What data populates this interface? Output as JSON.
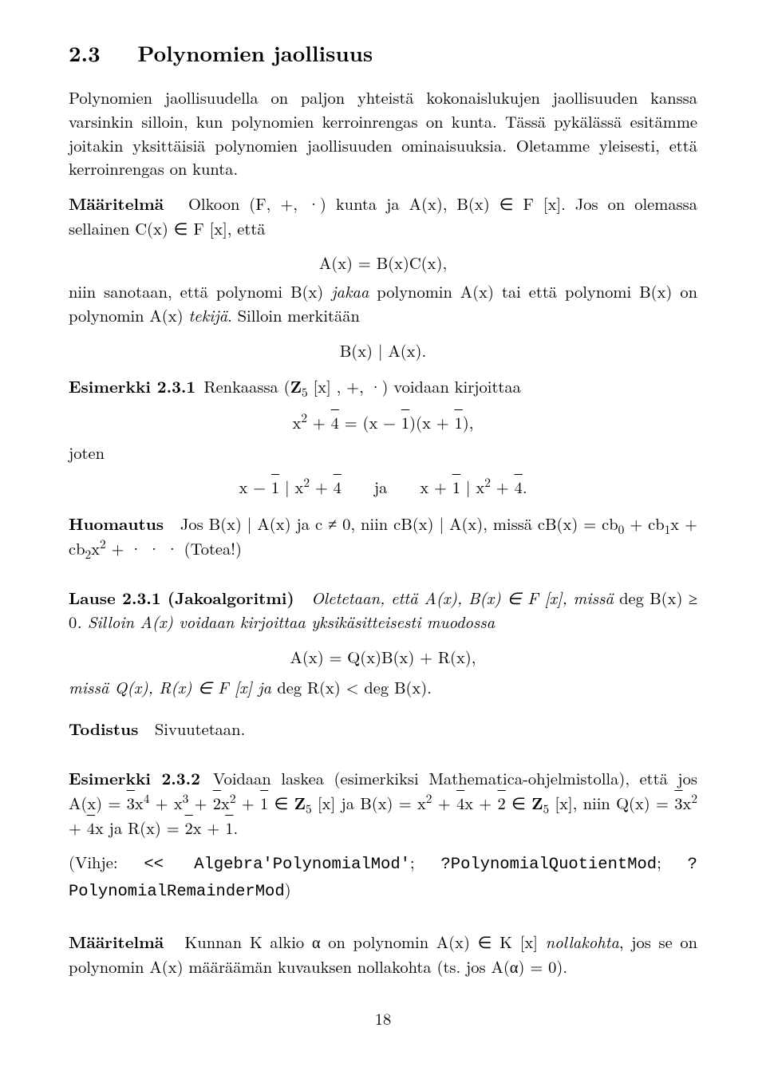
{
  "section": {
    "number": "2.3",
    "title": "Polynomien jaollisuus"
  },
  "intro_para": "Polynomien jaollisuudella on paljon yhteistä kokonaislukujen jaollisuuden kanssa varsinkin silloin, kun polynomien kerroinrengas on kunta. Tässä pykälässä esitämme joitakin yksittäisiä polynomien jaollisuuden ominaisuuksia. Oletamme yleisesti, että kerroinrengas on kunta.",
  "def1": {
    "label": "Määritelmä",
    "body_pre": "Olkoon (F, +, ·) kunta ja A(x), B(x) ∈ F [x]. Jos on olemassa sellainen C(x) ∈ F [x], että",
    "eq1": "A(x) = B(x)C(x),",
    "body_post_pre": "niin sanotaan, että polynomi B(x) ",
    "body_post_it1": "jakaa",
    "body_post_mid": " polynomin A(x) tai että polynomi B(x) on polynomin A(x) ",
    "body_post_it2": "tekijä",
    "body_post_end": ". Silloin merkitään",
    "eq2": "B(x) | A(x)."
  },
  "ex231": {
    "label": "Esimerkki 2.3.1",
    "body": "Renkaassa (",
    "ring": "Z",
    "ring_sub": "5",
    "body2": " [x] , +, ·) voidaan kirjoittaa",
    "eq": "x",
    "joten": "joten",
    "divides_ja": "ja"
  },
  "huom": {
    "label": "Huomautus",
    "body_a": "Jos B(x) | A(x) ja c ≠ 0, niin cB(x) | A(x), missä cB(x) = cb",
    "body_b": " + cb",
    "body_c": "x + cb",
    "body_d": "x",
    "body_e": " + · · · (Totea!)"
  },
  "lause231": {
    "label": "Lause 2.3.1 (Jakoalgoritmi)",
    "body_a": "Oletetaan, että A(x), B(x) ∈ F [x], missä",
    "body_deg": " deg B(x) ≥ 0",
    "body_b": ". Silloin A(x) voidaan kirjoittaa yksikäsitteisesti muodossa",
    "eq": "A(x) = Q(x)B(x) + R(x),",
    "body_c": "missä Q(x), R(x) ∈ F [x] ja ",
    "body_d": "deg R(x) < deg B(x)."
  },
  "tod": {
    "label": "Todistus",
    "body": "Sivuutetaan."
  },
  "ex232": {
    "label": "Esimerkki 2.3.2",
    "body_a": "Voidaan laskea (esimerkiksi Mathematica-ohjelmistolla), että jos A(x) = ",
    "ring": "Z",
    "ring_sub": "5",
    "body_mid1": " [x] ja B(x) = x",
    "body_niin": ", niin Q(x) = ",
    "body_jaR": " ja R(x) = ",
    "hint_pre": "(Vihje: ",
    "hint_code1": "<< Algebra'PolynomialMod'",
    "hint_sep1": "; ",
    "hint_code2": "?PolynomialQuotientMod",
    "hint_sep2": "; ",
    "hint_code3": "?PolynomialRemainderMod",
    "hint_post": ")"
  },
  "def2": {
    "label": "Määritelmä",
    "body_a": "Kunnan K alkio α on polynomin A(x) ∈ K [x] ",
    "it": "nollakohta",
    "body_b": ", jos se on polynomin A(x) määräämän kuvauksen nollakohta (ts. jos A(α) = 0)."
  },
  "page_number": "18"
}
